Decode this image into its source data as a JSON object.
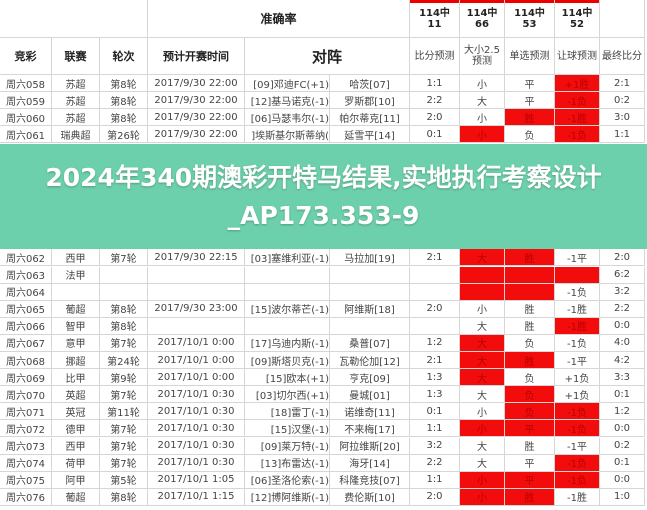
{
  "banner": {
    "title": "2024年340期澳彩开特马结果,实地执行考察设计_AP173.353-9"
  },
  "header": {
    "accuracy_label": "准确率",
    "accuracy": [
      {
        "top": "114中",
        "bottom": "11"
      },
      {
        "top": "114中",
        "bottom": "66"
      },
      {
        "top": "114中",
        "bottom": "53"
      },
      {
        "top": "114中",
        "bottom": "52"
      }
    ],
    "columns": [
      "竞彩",
      "联赛",
      "轮次",
      "预计开赛时间",
      "对阵",
      "比分预测",
      "大小2.5预测",
      "单选预测",
      "让球预测",
      "最终比分"
    ]
  },
  "colors": {
    "hit": "#f20c0c",
    "banner": "#34be8c"
  },
  "rows": [
    [
      "周六058",
      "苏超",
      "第8轮",
      "2017/9/30 22:00",
      "[09]邓迪FC(+1)",
      "哈茨[07]",
      "1:1",
      "小",
      "平",
      "+1胜",
      "2:1",
      [
        "r"
      ]
    ],
    [
      "周六059",
      "苏超",
      "第8轮",
      "2017/9/30 22:00",
      "[12]基马诺克(-1)",
      "罗斯郡[10]",
      "2:2",
      "大",
      "平",
      "-1负",
      "0:2",
      [
        "r"
      ]
    ],
    [
      "周六060",
      "苏超",
      "第8轮",
      "2017/9/30 22:00",
      "[06]马瑟韦尔(-1)",
      "帕尔蒂克[11]",
      "2:0",
      "小",
      "胜",
      "-1胜",
      "3:0",
      [
        "s",
        "r"
      ]
    ],
    [
      "周六061",
      "瑞典超",
      "第26轮",
      "2017/9/30 22:00",
      "]埃斯基尔斯蒂纳(",
      "延雪平[14]",
      "0:1",
      "小",
      "负",
      "-1负",
      "1:1",
      [
        "d",
        "r"
      ]
    ],
    [
      "周六062",
      "西甲",
      "第7轮",
      "2017/9/30 22:15",
      "[03]塞维利亚(-1)",
      "马拉加[19]",
      "2:1",
      "大",
      "胜",
      "-1平",
      "2:0",
      [
        "d",
        "s"
      ]
    ],
    [
      "周六063",
      "法甲",
      "",
      "",
      "",
      "",
      "",
      "",
      "",
      "",
      "6:2",
      [
        "d",
        "s",
        "r"
      ]
    ],
    [
      "周六064",
      "",
      "",
      "",
      "",
      "",
      "",
      "",
      "",
      "-1负",
      "3:2",
      [
        "d",
        "s"
      ]
    ],
    [
      "周六065",
      "葡超",
      "第8轮",
      "2017/9/30 23:00",
      "[15]波尔蒂芒(-1)",
      "阿维斯[18]",
      "2:0",
      "小",
      "胜",
      "-1胜",
      "2:2",
      []
    ],
    [
      "周六066",
      "智甲",
      "第8轮",
      "",
      "",
      "",
      "",
      "大",
      "胜",
      "-1胜",
      "0:0",
      [
        "r"
      ]
    ],
    [
      "周六067",
      "意甲",
      "第7轮",
      "2017/10/1 0:00",
      "[17]乌迪内斯(-1)",
      "桑普[07]",
      "1:2",
      "大",
      "负",
      "-1负",
      "4:0",
      [
        "d"
      ]
    ],
    [
      "周六068",
      "挪超",
      "第24轮",
      "2017/10/1 0:00",
      "[09]斯塔贝克(-1)",
      "瓦勒伦加[12]",
      "2:1",
      "大",
      "胜",
      "-1平",
      "4:2",
      [
        "d",
        "s"
      ]
    ],
    [
      "周六069",
      "比甲",
      "第9轮",
      "2017/10/1 0:00",
      "[15]欧本(+1)",
      "亨克[09]",
      "1:3",
      "大",
      "负",
      "+1负",
      "3:3",
      [
        "d"
      ]
    ],
    [
      "周六070",
      "英超",
      "第7轮",
      "2017/10/1 0:30",
      "[03]切尔西(+1)",
      "曼城[01]",
      "1:3",
      "大",
      "负",
      "+1负",
      "0:1",
      [
        "s"
      ]
    ],
    [
      "周六071",
      "英冠",
      "第11轮",
      "2017/10/1 0:30",
      "[18]雷丁(-1)",
      "诺维奇[11]",
      "0:1",
      "小",
      "负",
      "-1负",
      "1:2",
      [
        "s",
        "r"
      ]
    ],
    [
      "周六072",
      "德甲",
      "第7轮",
      "2017/10/1 0:30",
      "[15]汉堡(-1)",
      "不来梅[17]",
      "1:1",
      "小",
      "平",
      "-1负",
      "0:0",
      [
        "d",
        "s",
        "r"
      ]
    ],
    [
      "周六073",
      "西甲",
      "第7轮",
      "2017/10/1 0:30",
      "[09]莱万特(-1)",
      "阿拉维斯[20]",
      "3:2",
      "大",
      "胜",
      "-1平",
      "0:2",
      []
    ],
    [
      "周六074",
      "荷甲",
      "第7轮",
      "2017/10/1 0:30",
      "[13]布雷达(-1)",
      "海牙[14]",
      "2:2",
      "大",
      "平",
      "-1负",
      "0:1",
      [
        "r"
      ]
    ],
    [
      "周六075",
      "阿甲",
      "第5轮",
      "2017/10/1 1:05",
      "[06]圣洛伦索(-1)",
      "科隆竞技[07]",
      "1:1",
      "小",
      "平",
      "-1负",
      "0:0",
      [
        "d",
        "s",
        "r"
      ]
    ],
    [
      "周六076",
      "葡超",
      "第8轮",
      "2017/10/1 1:15",
      "[12]博阿维斯(-1)",
      "费伦斯[10]",
      "2:0",
      "小",
      "胜",
      "-1胜",
      "1:0",
      [
        "d",
        "s"
      ]
    ]
  ]
}
